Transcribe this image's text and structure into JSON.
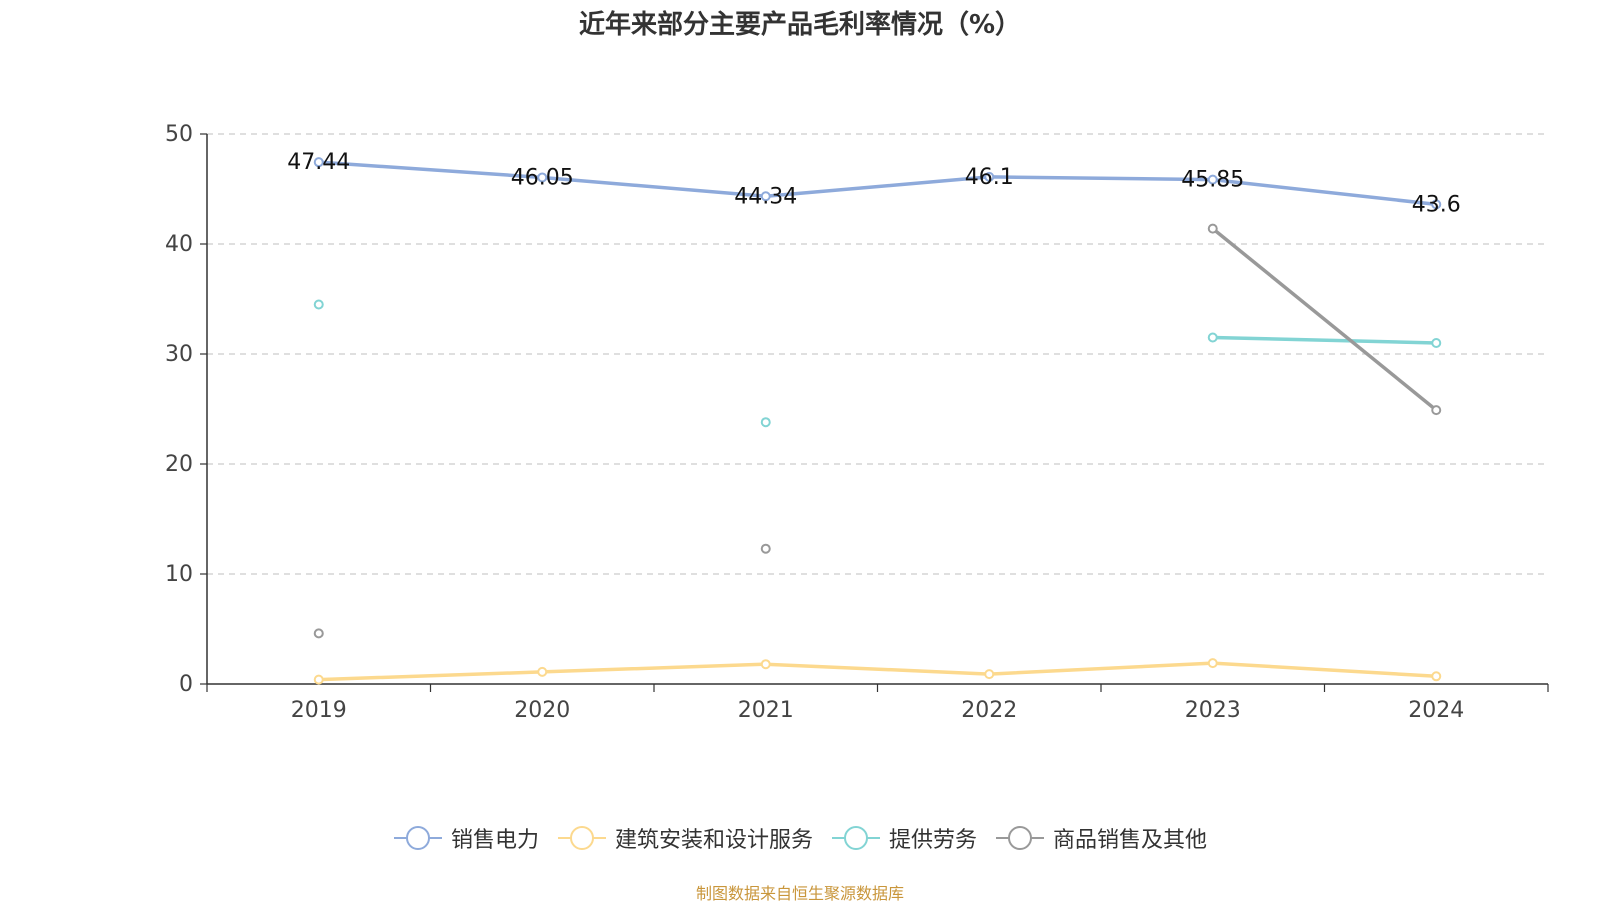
{
  "chart_data": {
    "type": "line",
    "title": "近年来部分主要产品毛利率情况（%）",
    "categories": [
      "2019",
      "2020",
      "2021",
      "2022",
      "2023",
      "2024"
    ],
    "ylim": [
      0,
      50
    ],
    "yticks": [
      0,
      10,
      20,
      30,
      40,
      50
    ],
    "grid": "horizontal dashed",
    "legend_position": "bottom",
    "series": [
      {
        "name": "销售电力",
        "color": "#8eaadb",
        "values": [
          47.44,
          46.05,
          44.34,
          46.1,
          45.85,
          43.6
        ],
        "labels": [
          "47.44",
          "46.05",
          "44.34",
          "46.1",
          "45.85",
          "43.6"
        ]
      },
      {
        "name": "建筑安装和设计服务",
        "color": "#fcd98e",
        "values": [
          0.4,
          1.1,
          1.8,
          0.9,
          1.9,
          0.7
        ]
      },
      {
        "name": "提供劳务",
        "color": "#82d4d4",
        "values": [
          34.5,
          null,
          23.8,
          null,
          31.5,
          31.0
        ]
      },
      {
        "name": "商品销售及其他",
        "color": "#999999",
        "values": [
          4.6,
          null,
          12.3,
          null,
          41.4,
          24.9
        ]
      }
    ]
  },
  "source_note": "制图数据来自恒生聚源数据库"
}
